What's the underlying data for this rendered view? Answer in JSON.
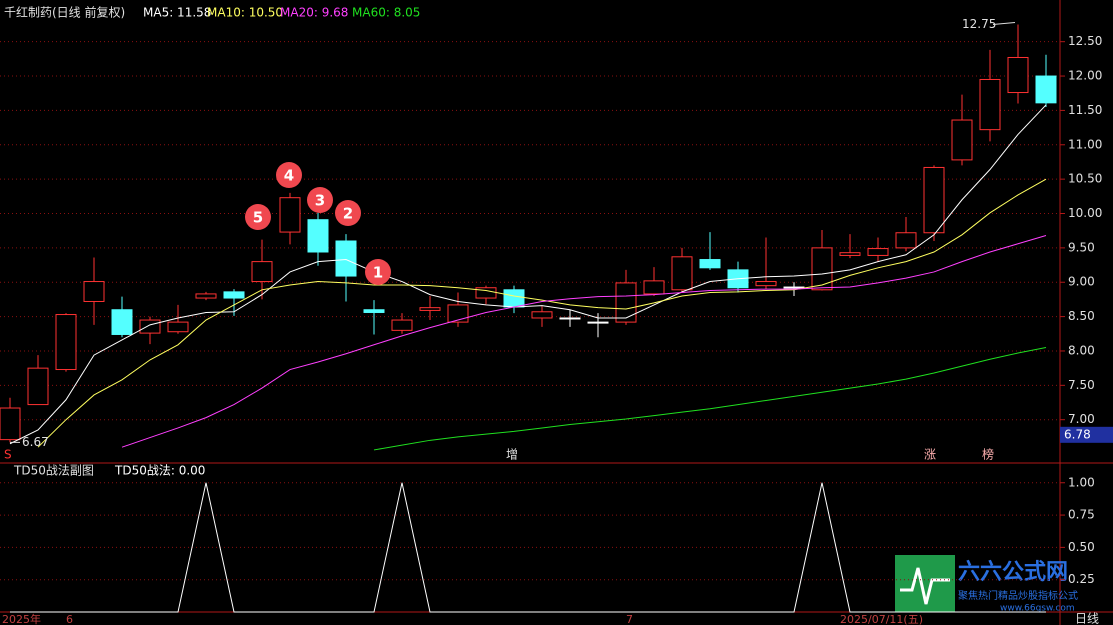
{
  "chart_data": [
    {
      "type": "candlestick",
      "title": "千红制药(日线 前复权)",
      "open": [
        6.71,
        7.22,
        7.73,
        8.72,
        8.6,
        8.26,
        8.28,
        8.77,
        8.86,
        9.01,
        9.73,
        9.91,
        9.6,
        8.6,
        8.3,
        8.59,
        8.42,
        8.77,
        8.89,
        8.48,
        8.48,
        8.42,
        8.42,
        8.83,
        8.89,
        9.33,
        9.18,
        8.95,
        8.93,
        8.89,
        9.39,
        9.39,
        9.5,
        9.72,
        10.78,
        11.22,
        11.76,
        12.0
      ],
      "high": [
        7.32,
        7.94,
        8.55,
        9.36,
        8.79,
        8.5,
        8.67,
        8.86,
        8.9,
        9.62,
        10.3,
        10.01,
        9.7,
        8.74,
        8.55,
        8.8,
        8.85,
        8.95,
        8.95,
        8.65,
        8.6,
        8.55,
        9.18,
        9.22,
        9.5,
        9.73,
        9.3,
        9.65,
        9.0,
        9.76,
        9.7,
        9.65,
        9.95,
        10.7,
        11.73,
        12.38,
        12.75,
        12.31
      ],
      "low": [
        6.67,
        7.22,
        7.7,
        8.38,
        8.2,
        8.1,
        8.25,
        8.74,
        8.51,
        8.75,
        9.55,
        9.24,
        8.72,
        8.24,
        8.25,
        8.45,
        8.35,
        8.68,
        8.55,
        8.35,
        8.35,
        8.2,
        8.38,
        8.8,
        8.85,
        9.18,
        8.85,
        8.9,
        8.8,
        8.88,
        9.35,
        9.3,
        9.45,
        9.6,
        10.7,
        11.05,
        11.6,
        11.55
      ],
      "close": [
        7.17,
        7.75,
        8.53,
        9.01,
        8.24,
        8.45,
        8.42,
        8.83,
        8.77,
        9.3,
        10.23,
        9.44,
        9.09,
        8.56,
        8.45,
        8.63,
        8.67,
        8.92,
        8.64,
        8.57,
        8.48,
        8.42,
        8.99,
        9.02,
        9.37,
        9.21,
        8.92,
        9.01,
        8.93,
        9.5,
        9.43,
        9.49,
        9.72,
        10.67,
        11.36,
        11.95,
        12.27,
        11.61
      ],
      "up_color": "#ff3232",
      "down_color": "#54ffff",
      "flat_color": "#ffffff",
      "series": [
        {
          "name": "MA5: 11.58",
          "color": "#ffffff",
          "values": [
            6.65,
            6.85,
            7.29,
            7.94,
            8.16,
            8.38,
            8.48,
            8.56,
            8.57,
            8.82,
            9.15,
            9.3,
            9.33,
            9.15,
            9.01,
            8.82,
            8.72,
            8.67,
            8.64,
            8.66,
            8.6,
            8.48,
            8.48,
            8.67,
            8.86,
            9.01,
            9.05,
            9.08,
            9.09,
            9.12,
            9.18,
            9.3,
            9.4,
            9.69,
            10.2,
            10.64,
            11.15,
            11.58
          ]
        },
        {
          "name": "MA10: 10.50",
          "color": "#ffff60",
          "values": [
            null,
            6.6,
            7.0,
            7.36,
            7.58,
            7.87,
            8.09,
            8.45,
            8.67,
            8.89,
            8.96,
            9.01,
            8.99,
            8.96,
            8.96,
            8.95,
            8.92,
            8.88,
            8.8,
            8.74,
            8.67,
            8.63,
            8.61,
            8.7,
            8.8,
            8.85,
            8.86,
            8.88,
            8.89,
            8.96,
            9.1,
            9.21,
            9.3,
            9.44,
            9.69,
            10.01,
            10.27,
            10.5
          ]
        },
        {
          "name": "MA20: 9.68",
          "color": "#ff40ff",
          "values": [
            null,
            null,
            null,
            null,
            6.6,
            6.74,
            6.88,
            7.03,
            7.22,
            7.46,
            7.73,
            7.84,
            7.96,
            8.09,
            8.22,
            8.34,
            8.45,
            8.56,
            8.64,
            8.72,
            8.76,
            8.79,
            8.8,
            8.82,
            8.85,
            8.88,
            8.89,
            8.9,
            8.9,
            8.92,
            8.93,
            8.99,
            9.06,
            9.15,
            9.3,
            9.44,
            9.56,
            9.68
          ]
        },
        {
          "name": "MA60: 8.05",
          "color": "#20e020",
          "values": [
            null,
            null,
            null,
            null,
            null,
            null,
            null,
            null,
            null,
            null,
            null,
            null,
            null,
            6.56,
            6.63,
            6.7,
            6.75,
            6.79,
            6.83,
            6.88,
            6.93,
            6.97,
            7.01,
            7.06,
            7.11,
            7.16,
            7.22,
            7.28,
            7.34,
            7.4,
            7.46,
            7.52,
            7.59,
            7.68,
            7.78,
            7.88,
            7.97,
            8.05
          ]
        }
      ],
      "ylim": [
        6.37,
        12.99
      ],
      "yticks": [
        {
          "value": 7,
          "label": "7.00"
        },
        {
          "value": 7.5,
          "label": "7.50"
        },
        {
          "value": 8,
          "label": "8.00"
        },
        {
          "value": 8.5,
          "label": "8.50"
        },
        {
          "value": 9,
          "label": "9.00"
        },
        {
          "value": 9.5,
          "label": "9.50"
        },
        {
          "value": 10,
          "label": "10.00"
        },
        {
          "value": 10.5,
          "label": "10.50"
        },
        {
          "value": 11,
          "label": "11.00"
        },
        {
          "value": 11.5,
          "label": "11.50"
        },
        {
          "value": 12,
          "label": "12.00"
        },
        {
          "value": 12.5,
          "label": "12.50"
        }
      ],
      "grid": true,
      "max_label": 12.75,
      "min_label": 6.67,
      "price_tag": 6.78,
      "annotations": [
        "5",
        "4",
        "3",
        "2",
        "1"
      ],
      "markers": [
        "S",
        "增",
        "涨",
        "榜"
      ]
    },
    {
      "type": "line",
      "title": "TD50战法副图",
      "series": [
        {
          "name": "TD50战法: 0.00",
          "color": "#ffffff",
          "values": [
            0,
            0,
            0,
            0,
            0,
            0,
            0,
            1,
            0,
            0,
            0,
            0,
            0,
            0,
            1,
            0,
            0,
            0,
            0,
            0,
            0,
            0,
            0,
            0,
            0,
            0,
            0,
            0,
            0,
            1,
            0,
            0,
            0,
            0,
            0,
            0,
            0,
            0
          ]
        }
      ],
      "ylim": [
        0,
        1.06
      ],
      "yticks": [
        {
          "value": 0.25,
          "label": "0.25"
        },
        {
          "value": 0.5,
          "label": "0.50"
        },
        {
          "value": 0.75,
          "label": "0.75"
        },
        {
          "value": 1,
          "label": "1.00"
        }
      ],
      "grid": true
    }
  ],
  "x_labels": [
    "2025年",
    "6",
    "7",
    "2025/07/11(五)"
  ],
  "period": "日线",
  "watermark": {
    "name": "六六公式网",
    "slogan": "聚焦热门精品炒股指标公式",
    "url": "www.66gsw.com"
  }
}
